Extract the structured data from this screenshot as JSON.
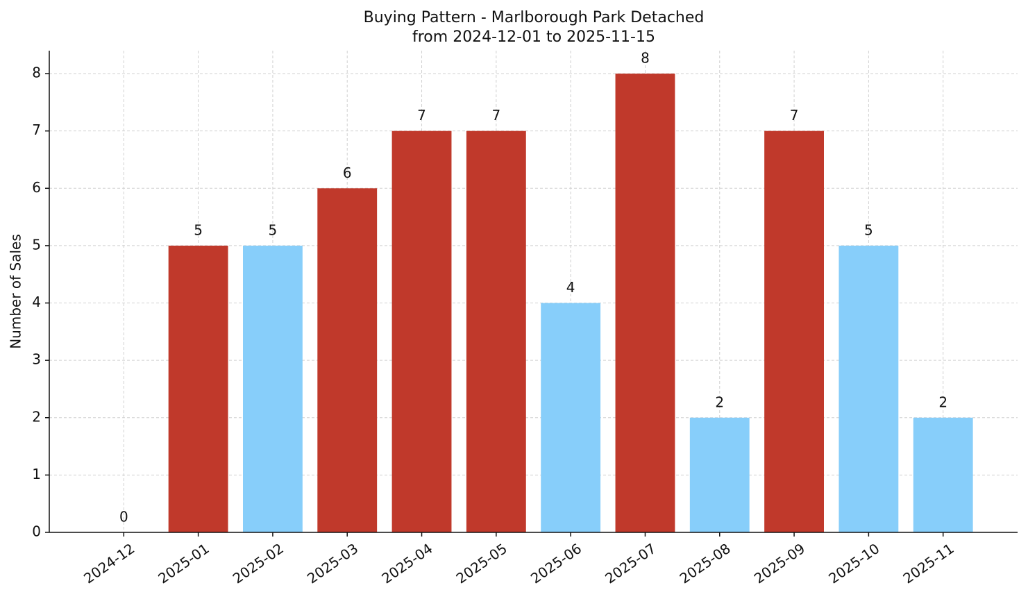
{
  "chart_data": {
    "type": "bar",
    "title": "Buying Pattern - Marlborough Park Detached",
    "subtitle": "from 2024-12-01 to 2025-11-15",
    "y_label": "Number of Sales",
    "categories": [
      "2024-12",
      "2025-01",
      "2025-02",
      "2025-03",
      "2025-04",
      "2025-05",
      "2025-06",
      "2025-07",
      "2025-08",
      "2025-09",
      "2025-10",
      "2025-11"
    ],
    "values": [
      0,
      5,
      5,
      6,
      7,
      7,
      4,
      8,
      2,
      7,
      5,
      2
    ],
    "colors": [
      "#87cefa",
      "#c0392b",
      "#87cefa",
      "#c0392b",
      "#c0392b",
      "#c0392b",
      "#87cefa",
      "#c0392b",
      "#87cefa",
      "#c0392b",
      "#87cefa",
      "#87cefa"
    ],
    "ylim": [
      0,
      8.4
    ],
    "yticks": [
      0,
      1,
      2,
      3,
      4,
      5,
      6,
      7,
      8
    ],
    "grid": true
  }
}
